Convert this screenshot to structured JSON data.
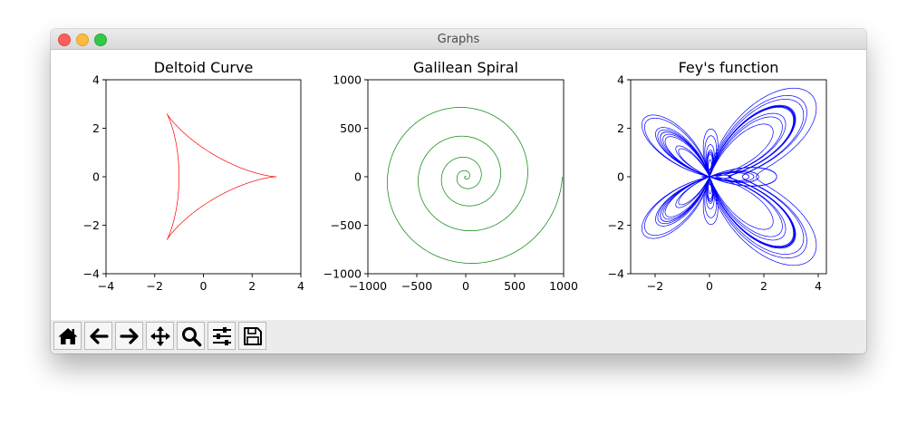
{
  "window": {
    "title": "Graphs"
  },
  "toolbar": {
    "buttons": [
      {
        "name": "home",
        "icon": "home-icon"
      },
      {
        "name": "back",
        "icon": "arrow-left-icon"
      },
      {
        "name": "forward",
        "icon": "arrow-right-icon"
      },
      {
        "name": "pan",
        "icon": "move-icon"
      },
      {
        "name": "zoom",
        "icon": "magnifier-icon"
      },
      {
        "name": "configure-subplots",
        "icon": "sliders-icon"
      },
      {
        "name": "save",
        "icon": "floppy-disk-icon"
      }
    ]
  },
  "chart_data": [
    {
      "type": "line",
      "title": "Deltoid Curve",
      "series": [
        {
          "curve": "deltoid",
          "parametric": "x = 2cos t + cos 2t, y = 2sin t - sin 2t",
          "color": "#ff0000"
        }
      ],
      "xlim": [
        -4,
        4
      ],
      "ylim": [
        -4,
        4
      ],
      "xticks": [
        "−4",
        "−2",
        "0",
        "2",
        "4"
      ],
      "yticks": [
        "−4",
        "−2",
        "0",
        "2",
        "4"
      ],
      "grid": false
    },
    {
      "type": "line",
      "title": "Galilean Spiral",
      "series": [
        {
          "curve": "galilean-spiral",
          "parametric": "r = θ², θ from 0 to 10π",
          "color": "#008000"
        }
      ],
      "xlim": [
        -1000,
        1000
      ],
      "ylim": [
        -1000,
        1000
      ],
      "xticks": [
        "−1000",
        "−500",
        "0",
        "500",
        "1000"
      ],
      "yticks": [
        "−1000",
        "−500",
        "0",
        "500",
        "1000"
      ],
      "grid": false
    },
    {
      "type": "line",
      "title": "Fey's function",
      "series": [
        {
          "curve": "fey-butterfly",
          "parametric": "r = e^cos θ − 2cos 4θ + sin^5(θ/12), θ from 0 to 24π",
          "color": "#0000ff"
        }
      ],
      "xlim": [
        -2.9,
        4.3
      ],
      "ylim": [
        -4,
        4
      ],
      "xticks": [
        "−2",
        "0",
        "2",
        "4"
      ],
      "yticks": [
        "−4",
        "−2",
        "0",
        "2",
        "4"
      ],
      "grid": false
    }
  ]
}
